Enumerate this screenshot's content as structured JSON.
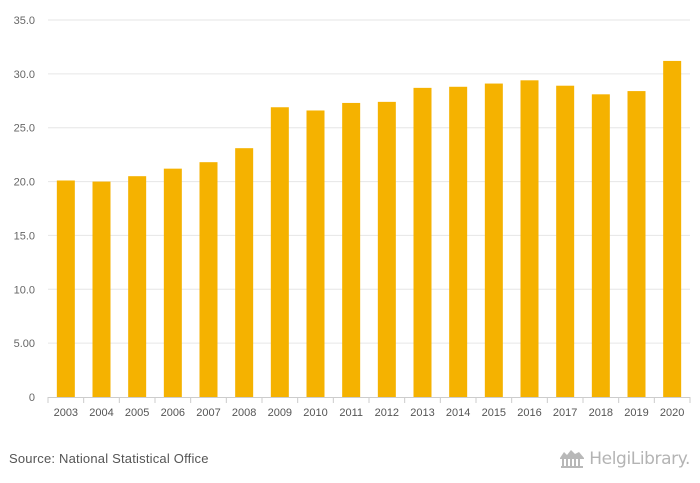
{
  "chart_data": {
    "type": "bar",
    "title": "",
    "xlabel": "",
    "ylabel": "",
    "categories": [
      "2003",
      "2004",
      "2005",
      "2006",
      "2007",
      "2008",
      "2009",
      "2010",
      "2011",
      "2012",
      "2013",
      "2014",
      "2015",
      "2016",
      "2017",
      "2018",
      "2019",
      "2020"
    ],
    "values": [
      20.1,
      20.0,
      20.5,
      21.2,
      21.8,
      23.1,
      26.9,
      26.6,
      27.3,
      27.4,
      28.7,
      28.8,
      29.1,
      29.4,
      28.9,
      28.1,
      28.4,
      31.2
    ],
    "ylim": [
      0,
      35
    ],
    "yticks": [
      0,
      5,
      10,
      15,
      20,
      25,
      30,
      35
    ],
    "ytick_labels": [
      "0",
      "5.00",
      "10.0",
      "15.0",
      "20.0",
      "25.0",
      "30.0",
      "35.0"
    ],
    "grid": true,
    "legend": "none",
    "bar_color": "#f5b200"
  },
  "footer": {
    "source": "Source: National Statistical Office",
    "brand": "HelgiLibrary."
  }
}
